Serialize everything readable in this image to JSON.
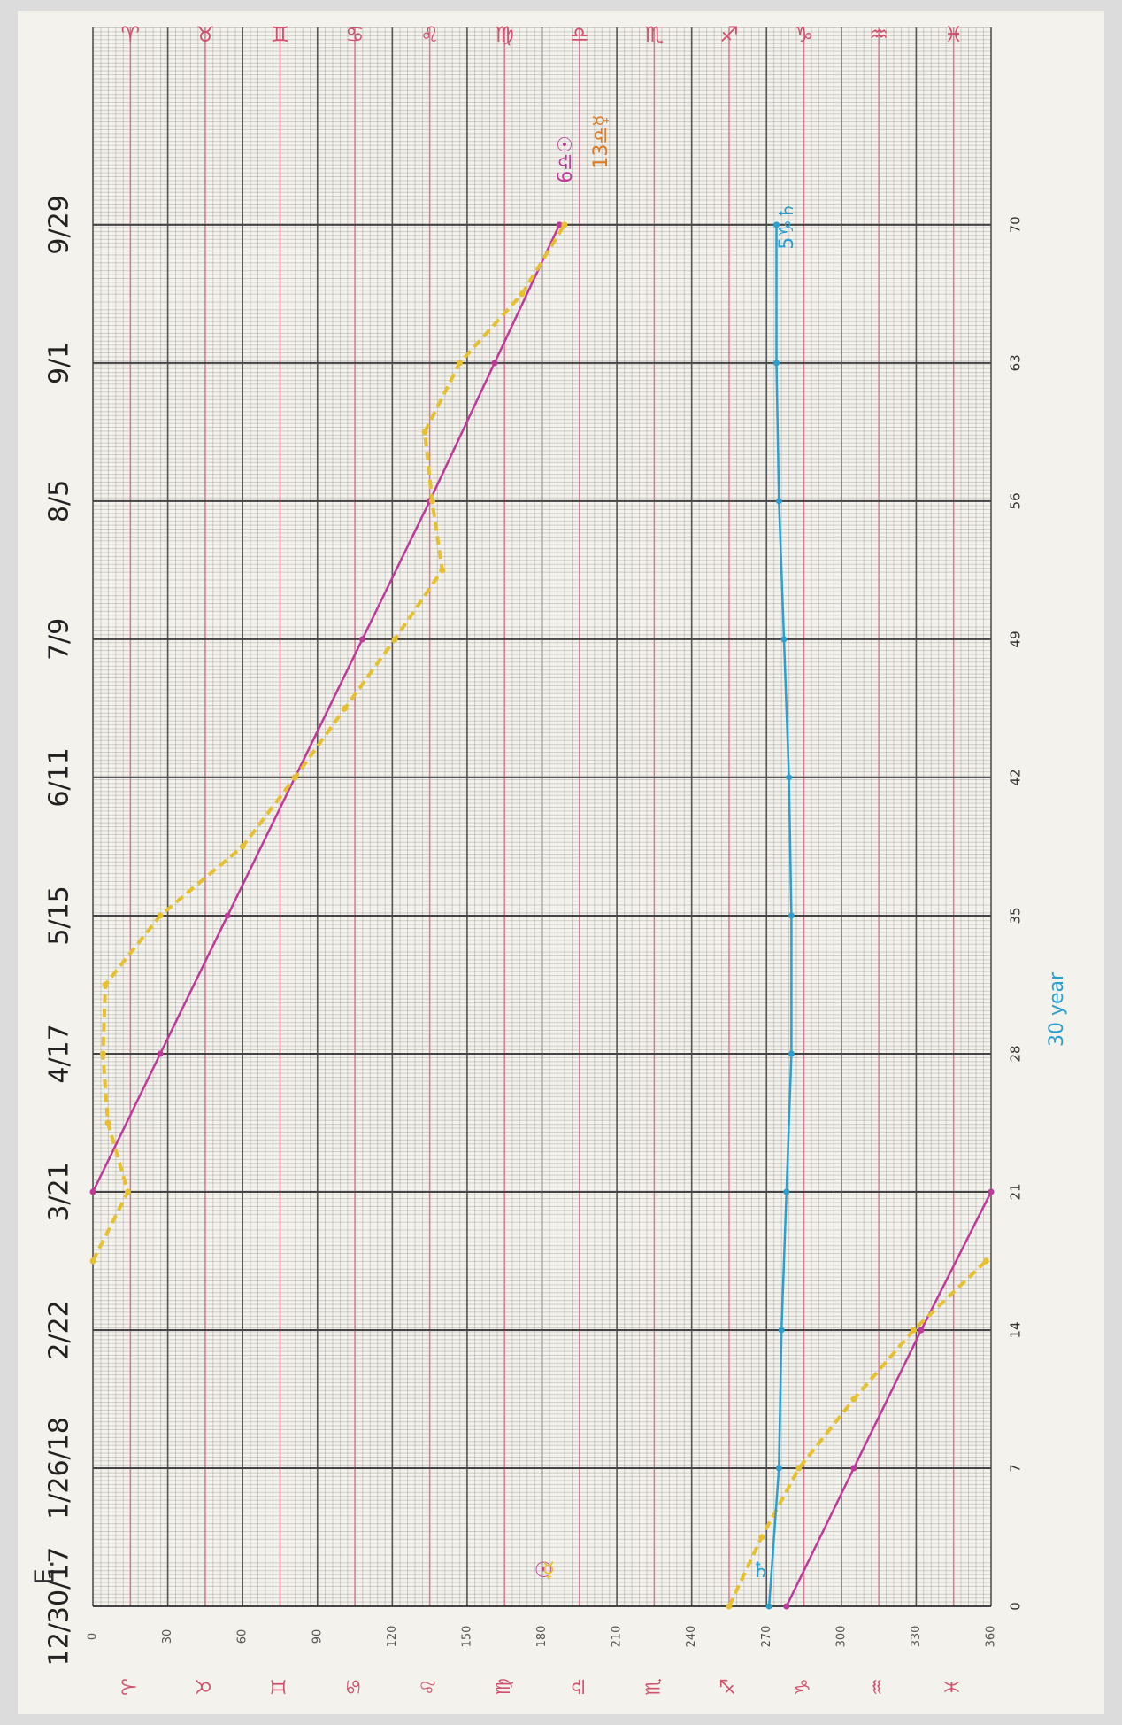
{
  "chart_data": {
    "type": "line",
    "corner_label": "E.",
    "x": [
      0,
      7,
      14,
      21,
      28,
      35,
      42,
      49,
      56,
      63,
      70
    ],
    "x_labels": [
      "12/30/17",
      "1/26/18",
      "2/22",
      "3/21",
      "4/17",
      "5/15",
      "6/11",
      "7/9",
      "8/5",
      "9/1",
      "9/29"
    ],
    "xlim": [
      0,
      80
    ],
    "ylim": [
      0,
      360
    ],
    "yticks": [
      0,
      30,
      60,
      90,
      120,
      150,
      180,
      210,
      240,
      270,
      300,
      330,
      360
    ],
    "signs": [
      "♈",
      "♉",
      "♊",
      "♋",
      "♌",
      "♍",
      "♎",
      "♏",
      "♐",
      "♑",
      "♒",
      "♓"
    ],
    "grid": true,
    "series": [
      {
        "name": "☉",
        "color": "#c0399a",
        "style": "solid",
        "x": [
          0,
          7,
          14,
          21,
          21,
          21,
          28,
          35,
          42,
          49,
          56,
          63,
          70
        ],
        "values": [
          278,
          305,
          332,
          360,
          null,
          0,
          27,
          54,
          81,
          108,
          135,
          161,
          187
        ]
      },
      {
        "name": "☿",
        "color": "#e6c02e",
        "style": "dashed",
        "x": [
          0,
          3.5,
          7,
          10.5,
          14,
          17.5,
          17.5,
          17.5,
          21,
          24.5,
          28,
          31.5,
          35,
          38.5,
          42,
          45.5,
          49,
          52.5,
          56,
          59.5,
          63,
          66.5,
          70
        ],
        "values": [
          255,
          268,
          283,
          305,
          329,
          358,
          null,
          0,
          14,
          6,
          4,
          5,
          27,
          60,
          81,
          101,
          121,
          140,
          136,
          133,
          147,
          172,
          189
        ]
      },
      {
        "name": "♄",
        "color": "#2a9fd0",
        "style": "solid",
        "x": [
          0,
          7,
          14,
          21,
          28,
          35,
          42,
          49,
          56,
          63,
          70
        ],
        "values": [
          271,
          275,
          276,
          278,
          280,
          280,
          279,
          277,
          275,
          274,
          274
        ]
      }
    ],
    "annotations": [
      "6♎☉",
      "13♎☿",
      "5♑♄",
      "30 year"
    ]
  }
}
